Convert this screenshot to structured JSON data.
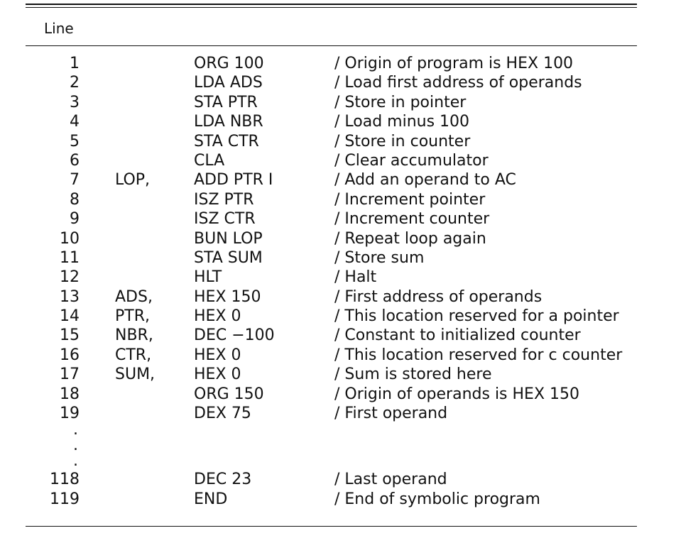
{
  "table": {
    "header": "Line",
    "rows": [
      {
        "num": "1",
        "label": "",
        "instr": "ORG 100",
        "comment": "/ Origin of program is HEX 100"
      },
      {
        "num": "2",
        "label": "",
        "instr": "LDA ADS",
        "comment": "/ Load first address of operands"
      },
      {
        "num": "3",
        "label": "",
        "instr": "STA PTR",
        "comment": "/ Store in pointer"
      },
      {
        "num": "4",
        "label": "",
        "instr": "LDA NBR",
        "comment": "/ Load minus 100"
      },
      {
        "num": "5",
        "label": "",
        "instr": "STA CTR",
        "comment": "/ Store in counter"
      },
      {
        "num": "6",
        "label": "",
        "instr": "CLA",
        "comment": "/ Clear accumulator"
      },
      {
        "num": "7",
        "label": "LOP,",
        "instr": "ADD PTR I",
        "comment": "/ Add an operand to AC"
      },
      {
        "num": "8",
        "label": "",
        "instr": "ISZ PTR",
        "comment": "/ Increment pointer"
      },
      {
        "num": "9",
        "label": "",
        "instr": "ISZ CTR",
        "comment": "/ Increment counter"
      },
      {
        "num": "10",
        "label": "",
        "instr": "BUN LOP",
        "comment": "/ Repeat loop again"
      },
      {
        "num": "11",
        "label": "",
        "instr": "STA SUM",
        "comment": "/ Store sum"
      },
      {
        "num": "12",
        "label": "",
        "instr": "HLT",
        "comment": "/ Halt"
      },
      {
        "num": "13",
        "label": "ADS,",
        "instr": "HEX 150",
        "comment": "/ First address of operands"
      },
      {
        "num": "14",
        "label": "PTR,",
        "instr": "HEX 0",
        "comment": "/ This location reserved for a pointer"
      },
      {
        "num": "15",
        "label": "NBR,",
        "instr": "DEC −100",
        "comment": "/ Constant to initialized counter"
      },
      {
        "num": "16",
        "label": "CTR,",
        "instr": "HEX 0",
        "comment": "/ This location reserved for c counter"
      },
      {
        "num": "17",
        "label": "SUM,",
        "instr": "HEX 0",
        "comment": "/ Sum is stored here"
      },
      {
        "num": "18",
        "label": "",
        "instr": "ORG 150",
        "comment": "/ Origin of operands is HEX 150"
      },
      {
        "num": "19",
        "label": "",
        "instr": "DEX 75",
        "comment": "/ First operand"
      }
    ],
    "ellipsis": [
      ".",
      ".",
      "."
    ],
    "tail_rows": [
      {
        "num": "118",
        "label": "",
        "instr": "DEC 23",
        "comment": "/ Last operand"
      },
      {
        "num": "119",
        "label": "",
        "instr": "END",
        "comment": "/ End of symbolic program"
      }
    ]
  }
}
